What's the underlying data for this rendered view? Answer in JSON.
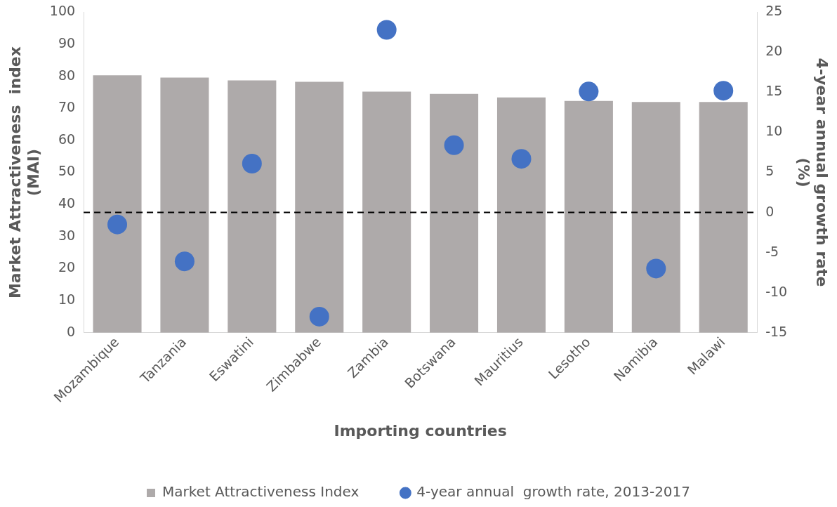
{
  "chart_data": {
    "type": "bar",
    "categories": [
      "Mozambique",
      "Tanzania",
      "Eswatini",
      "Zimbabwe",
      "Zambia",
      "Botswana",
      "Mauritius",
      "Lesotho",
      "Namibia",
      "Malawi"
    ],
    "xlabel": "Importing countries",
    "ylabel": "Market Attractiveness  index (MAI)",
    "y2label": "4-year annual growth rate (%)",
    "series": [
      {
        "name": "Market Attractiveness Index",
        "color": "#aeaaaa",
        "values": [
          80.3,
          79.6,
          78.7,
          78.3,
          75.2,
          74.5,
          73.4,
          72.3,
          72.0,
          72.0
        ]
      },
      {
        "name": "4-year annual  growth rate, 2013-2017",
        "type": "scatter",
        "axis": "y2",
        "color": "#4472c4",
        "values": [
          -1.5,
          -6.1,
          6.1,
          -13.0,
          22.8,
          8.4,
          6.7,
          15.1,
          -7.0,
          15.2
        ]
      }
    ],
    "ylim": [
      0,
      100
    ],
    "yticks": [
      0,
      10,
      20,
      30,
      40,
      50,
      60,
      70,
      80,
      90,
      100
    ],
    "y2lim": [
      -15,
      25
    ],
    "y2ticks": [
      -15,
      -10,
      -5,
      0,
      5,
      10,
      15,
      20,
      25
    ],
    "ref_lines": [
      {
        "axis": "y2",
        "value": 0,
        "color": "#000000",
        "line_style": "dashed"
      }
    ],
    "grid": false,
    "legend": "bottom",
    "marker": "circle"
  }
}
